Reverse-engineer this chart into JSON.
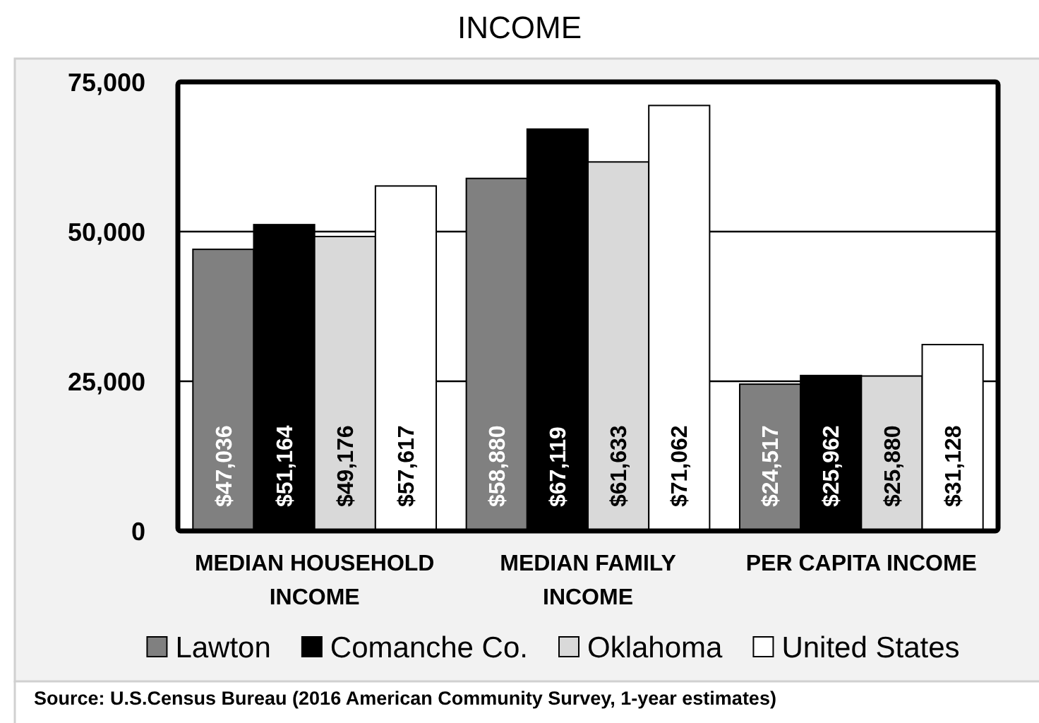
{
  "chart_data": {
    "type": "bar",
    "title": "INCOME",
    "categories": [
      "MEDIAN HOUSEHOLD INCOME",
      "MEDIAN FAMILY INCOME",
      "PER CAPITA INCOME"
    ],
    "series": [
      {
        "name": "Lawton",
        "color": "#808080",
        "values": [
          47036,
          58880,
          24517
        ],
        "value_labels": [
          "$47,036",
          "$58,880",
          "$24,517"
        ]
      },
      {
        "name": "Comanche Co.",
        "color": "#000000",
        "values": [
          51164,
          67119,
          25962
        ],
        "value_labels": [
          "$51,164",
          "$67,119",
          "$25,962"
        ]
      },
      {
        "name": "Oklahoma",
        "color": "#d9d9d9",
        "values": [
          49176,
          61633,
          25880
        ],
        "value_labels": [
          "$49,176",
          "$61,633",
          "$25,880"
        ]
      },
      {
        "name": "United States",
        "color": "#ffffff",
        "values": [
          57617,
          71062,
          31128
        ],
        "value_labels": [
          "$57,617",
          "$71,062",
          "$31,128"
        ]
      }
    ],
    "ylim": [
      0,
      75000
    ],
    "yticks": [
      0,
      {
        "value": 25000,
        "label": "25,000"
      },
      {
        "value": 50000,
        "label": "50,000"
      },
      {
        "value": 75000,
        "label": "75,000"
      }
    ],
    "grid": "y",
    "legend": "bottom",
    "annotations": [
      "Source: U.S.Census Bureau (2016 American Community Survey, 1-year estimates)"
    ]
  }
}
